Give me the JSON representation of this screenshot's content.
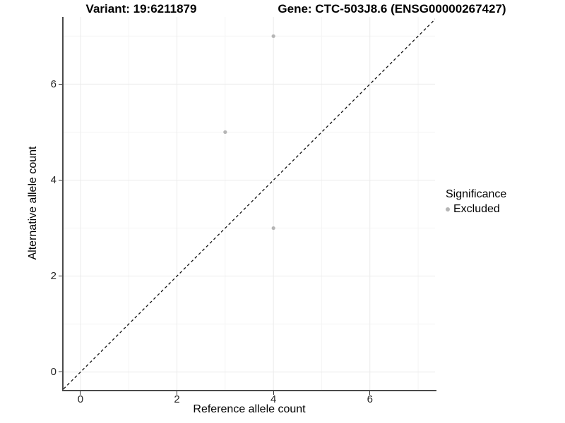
{
  "titles": {
    "variant": "Variant: 19:6211879",
    "gene": "Gene: CTC-503J8.6 (ENSG00000267427)"
  },
  "legend": {
    "title": "Significance",
    "items": [
      {
        "label": "Excluded",
        "color": "#b5b5b5"
      }
    ]
  },
  "chart_data": {
    "type": "scatter",
    "title": "Variant: 19:6211879   Gene: CTC-503J8.6 (ENSG00000267427)",
    "xlabel": "Reference allele count",
    "ylabel": "Alternative allele count",
    "xlim": [
      -0.35,
      7.35
    ],
    "ylim": [
      -0.37,
      7.4
    ],
    "x_ticks": [
      0,
      2,
      4,
      6
    ],
    "y_ticks": [
      0,
      2,
      4,
      6
    ],
    "x_minor_gridlines": [
      1,
      3,
      5,
      7
    ],
    "y_minor_gridlines": [
      1,
      3,
      5,
      7
    ],
    "grid": true,
    "legend_position": "right",
    "series": [
      {
        "name": "Excluded",
        "color": "#b5b5b5",
        "points": [
          [
            4,
            7
          ],
          [
            3,
            5
          ],
          [
            4,
            3
          ]
        ]
      }
    ],
    "reference_line": {
      "equation": "y = x",
      "style": "dashed",
      "color": "#111111"
    }
  },
  "colors": {
    "background": "#ffffff",
    "axis_line": "#4a4a4a",
    "tick_mark": "#333333",
    "grid_major": "#ebebeb",
    "grid_minor": "#f5f5f5",
    "point": "#b5b5b5",
    "tick_text": "#262626"
  }
}
